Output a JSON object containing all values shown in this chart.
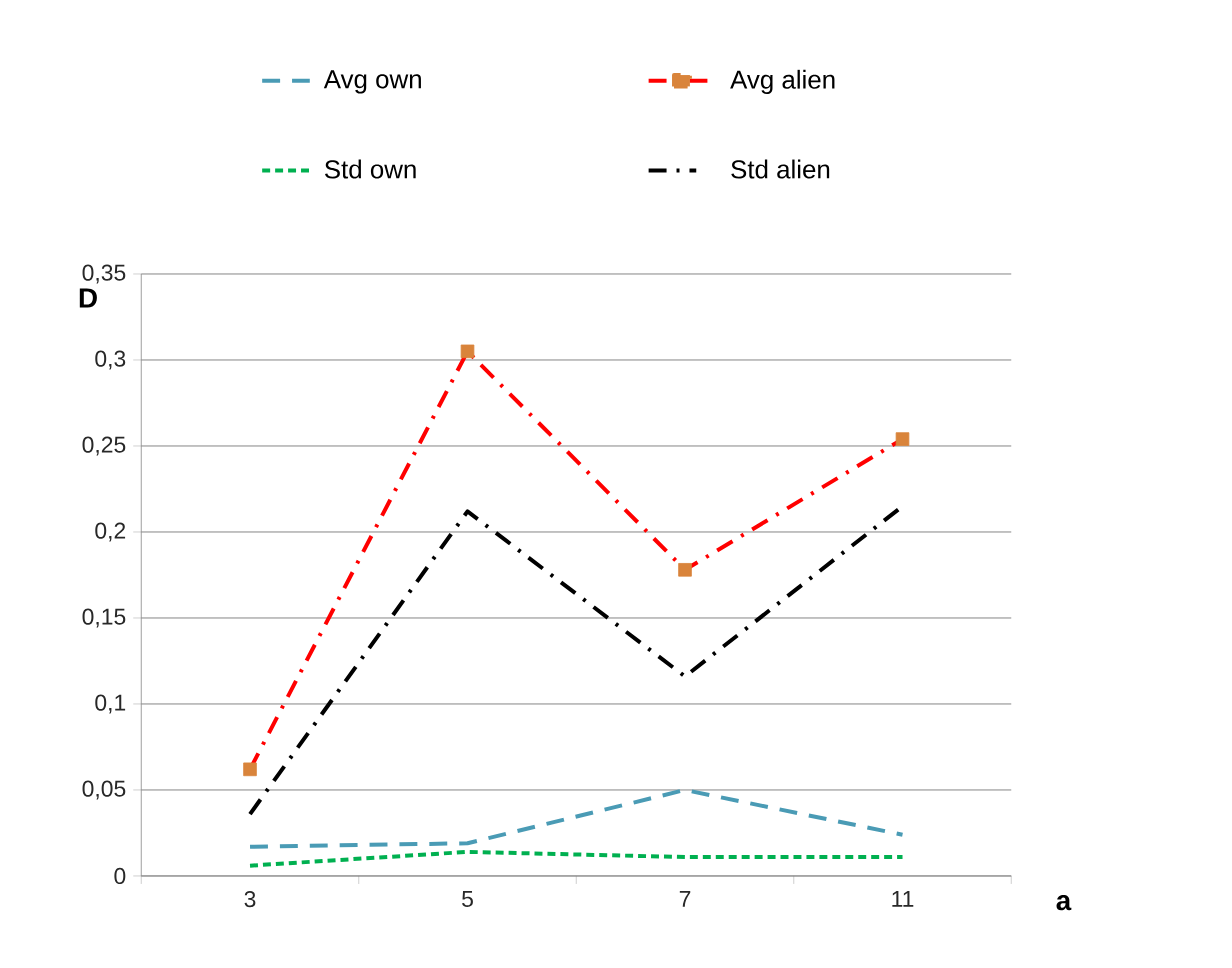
{
  "chart_data": {
    "type": "line",
    "xlabel": "a",
    "ylabel": "D",
    "categories": [
      "3",
      "5",
      "7",
      "11"
    ],
    "series": [
      {
        "name": "Avg own",
        "color": "#4a9bb5",
        "line_style": "dashed",
        "marker": "none",
        "values": [
          0.017,
          0.019,
          0.05,
          0.024
        ]
      },
      {
        "name": "Avg alien",
        "color": "#ff0000",
        "line_style": "dashdot",
        "marker": "square",
        "colors": [
          "#d9843b",
          "#d9843b",
          "#d9843b",
          "#d9843b"
        ],
        "values": [
          0.062,
          0.305,
          0.178,
          0.254
        ]
      },
      {
        "name": "Std own",
        "color": "#00b050",
        "line_style": "dotted",
        "marker": "none",
        "values": [
          0.006,
          0.014,
          0.011,
          0.011
        ]
      },
      {
        "name": "Std alien",
        "color": "#000000",
        "line_style": "dashdot",
        "marker": "none",
        "values": [
          0.036,
          0.212,
          0.116,
          0.215
        ]
      }
    ],
    "ylim": [
      0,
      0.35
    ],
    "yticks": [
      {
        "value": 0,
        "label": "0"
      },
      {
        "value": 0.05,
        "label": "0,05"
      },
      {
        "value": 0.1,
        "label": "0,1"
      },
      {
        "value": 0.15,
        "label": "0,15"
      },
      {
        "value": 0.2,
        "label": "0,2"
      },
      {
        "value": 0.25,
        "label": "0,25"
      },
      {
        "value": 0.3,
        "label": "0,3"
      },
      {
        "value": 0.35,
        "label": "0,35"
      }
    ],
    "grid": "y",
    "legend": "top"
  }
}
